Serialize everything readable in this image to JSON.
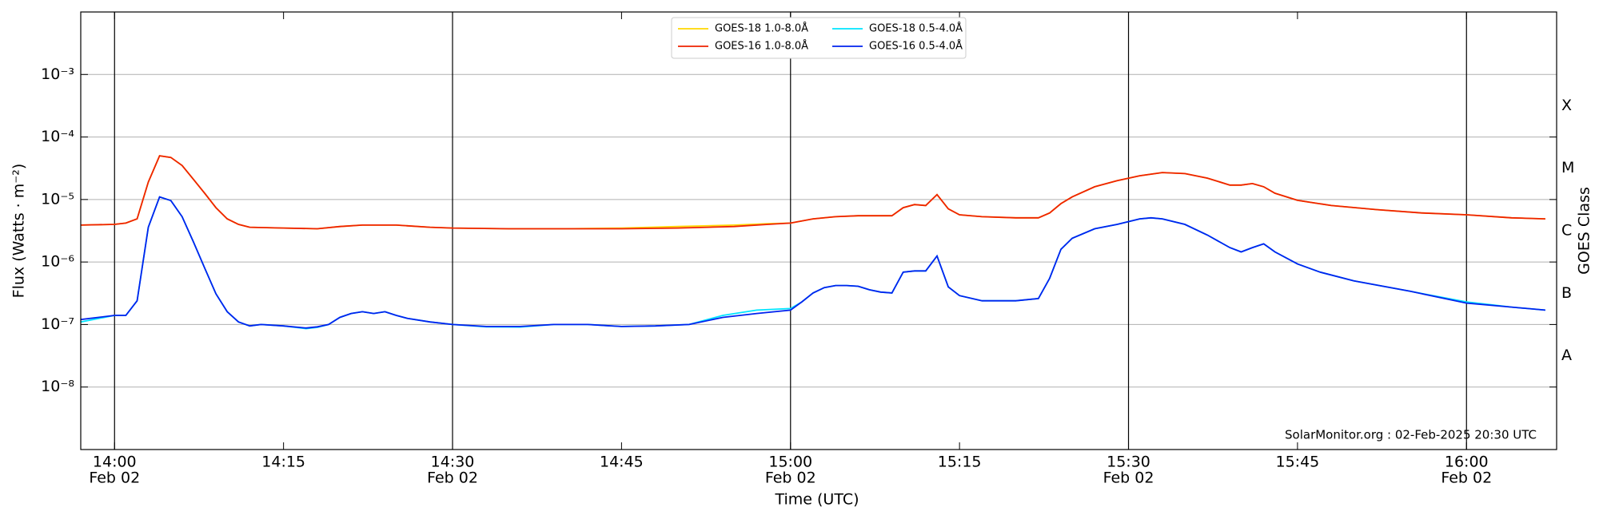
{
  "chart_data": {
    "type": "line",
    "x_label": "Time (UTC)",
    "y_label": "Flux (Watts · m⁻²)",
    "y2_label": "GOES Class",
    "annotation": "SolarMonitor.org : 02-Feb-2025 20:30 UTC",
    "log_scale": true,
    "grid": true,
    "legend": "upper center",
    "xlim": [
      "13:57",
      "16:08"
    ],
    "xticks": [
      "14:00",
      "14:15",
      "14:30",
      "14:45",
      "15:00",
      "15:15",
      "15:30",
      "15:45",
      "16:00"
    ],
    "xtick_dates": [
      "Feb 02",
      null,
      "Feb 02",
      null,
      "Feb 02",
      null,
      "Feb 02",
      null,
      "Feb 02"
    ],
    "vlines": [
      "14:00",
      "14:30",
      "15:00",
      "15:30",
      "16:00"
    ],
    "ylim": [
      1e-09,
      0.01
    ],
    "yticks": [
      {
        "value": 1e-08,
        "label": "10⁻⁸"
      },
      {
        "value": 1e-07,
        "label": "10⁻⁷"
      },
      {
        "value": 1e-06,
        "label": "10⁻⁶"
      },
      {
        "value": 1e-05,
        "label": "10⁻⁵"
      },
      {
        "value": 0.0001,
        "label": "10⁻⁴"
      },
      {
        "value": 0.001,
        "label": "10⁻³"
      }
    ],
    "y2ticks": [
      {
        "value": 1e-08,
        "label": "A"
      },
      {
        "value": 1e-07,
        "label": "B"
      },
      {
        "value": 1e-06,
        "label": "C"
      },
      {
        "value": 1e-05,
        "label": "M"
      },
      {
        "value": 0.0001,
        "label": "X"
      }
    ],
    "series": [
      {
        "name": "GOES-18 1.0-8.0Å",
        "color": "#ffd700",
        "x": [
          "13:57",
          "14:00",
          "14:01",
          "14:02",
          "14:03",
          "14:04",
          "14:05",
          "14:06",
          "14:07",
          "14:08",
          "14:09",
          "14:10",
          "14:11",
          "14:12",
          "14:15",
          "14:18",
          "14:20",
          "14:22",
          "14:25",
          "14:28",
          "14:30",
          "14:35",
          "14:40",
          "14:45",
          "14:50",
          "14:55",
          "14:58",
          "15:00",
          "15:02",
          "15:04",
          "15:06",
          "15:08",
          "15:09",
          "15:10",
          "15:11",
          "15:12",
          "15:13",
          "15:14",
          "15:15",
          "15:17",
          "15:20",
          "15:22",
          "15:23",
          "15:24",
          "15:25",
          "15:27",
          "15:29",
          "15:31",
          "15:33",
          "15:35",
          "15:37",
          "15:39",
          "15:40",
          "15:41",
          "15:42",
          "15:43",
          "15:45",
          "15:48",
          "15:52",
          "15:56",
          "16:00",
          "16:04",
          "16:07"
        ],
        "values": [
          3.9e-06,
          4e-06,
          4.2e-06,
          4.9e-06,
          1.9e-05,
          5e-05,
          4.7e-05,
          3.5e-05,
          2.1e-05,
          1.26e-05,
          7.4e-06,
          4.9e-06,
          4e-06,
          3.6e-06,
          3.5e-06,
          3.4e-06,
          3.7e-06,
          3.9e-06,
          3.9e-06,
          3.6e-06,
          3.5e-06,
          3.4e-06,
          3.4e-06,
          3.5e-06,
          3.7e-06,
          3.9e-06,
          4.1e-06,
          4.2e-06,
          4.9e-06,
          5.3e-06,
          5.5e-06,
          5.5e-06,
          5.5e-06,
          7.4e-06,
          8.3e-06,
          8e-06,
          1.2e-05,
          7.1e-06,
          5.7e-06,
          5.3e-06,
          5.1e-06,
          5.1e-06,
          6.1e-06,
          8.6e-06,
          1.1e-05,
          1.6e-05,
          2e-05,
          2.4e-05,
          2.7e-05,
          2.6e-05,
          2.2e-05,
          1.7e-05,
          1.7e-05,
          1.8e-05,
          1.6e-05,
          1.26e-05,
          9.7e-06,
          8e-06,
          6.9e-06,
          6.1e-06,
          5.7e-06,
          5.1e-06,
          4.9e-06
        ]
      },
      {
        "name": "GOES-16 1.0-8.0Å",
        "color": "#ee2200",
        "x": [
          "13:57",
          "14:00",
          "14:01",
          "14:02",
          "14:03",
          "14:04",
          "14:05",
          "14:06",
          "14:07",
          "14:08",
          "14:09",
          "14:10",
          "14:11",
          "14:12",
          "14:15",
          "14:18",
          "14:20",
          "14:22",
          "14:25",
          "14:28",
          "14:30",
          "14:35",
          "14:40",
          "14:45",
          "14:50",
          "14:55",
          "14:58",
          "15:00",
          "15:02",
          "15:04",
          "15:06",
          "15:08",
          "15:09",
          "15:10",
          "15:11",
          "15:12",
          "15:13",
          "15:14",
          "15:15",
          "15:17",
          "15:20",
          "15:22",
          "15:23",
          "15:24",
          "15:25",
          "15:27",
          "15:29",
          "15:31",
          "15:33",
          "15:35",
          "15:37",
          "15:39",
          "15:40",
          "15:41",
          "15:42",
          "15:43",
          "15:45",
          "15:48",
          "15:52",
          "15:56",
          "16:00",
          "16:04",
          "16:07"
        ],
        "values": [
          3.9e-06,
          4e-06,
          4.2e-06,
          4.9e-06,
          1.9e-05,
          5e-05,
          4.7e-05,
          3.5e-05,
          2.1e-05,
          1.26e-05,
          7.4e-06,
          4.9e-06,
          4e-06,
          3.6e-06,
          3.5e-06,
          3.4e-06,
          3.7e-06,
          3.9e-06,
          3.9e-06,
          3.6e-06,
          3.5e-06,
          3.4e-06,
          3.4e-06,
          3.4e-06,
          3.5e-06,
          3.7e-06,
          4e-06,
          4.2e-06,
          4.9e-06,
          5.3e-06,
          5.5e-06,
          5.5e-06,
          5.5e-06,
          7.4e-06,
          8.3e-06,
          8e-06,
          1.2e-05,
          7.1e-06,
          5.7e-06,
          5.3e-06,
          5.1e-06,
          5.1e-06,
          6.1e-06,
          8.6e-06,
          1.1e-05,
          1.6e-05,
          2e-05,
          2.4e-05,
          2.7e-05,
          2.6e-05,
          2.2e-05,
          1.7e-05,
          1.7e-05,
          1.8e-05,
          1.6e-05,
          1.26e-05,
          9.7e-06,
          8e-06,
          6.9e-06,
          6.1e-06,
          5.7e-06,
          5.1e-06,
          4.9e-06
        ]
      },
      {
        "name": "GOES-18 0.5-4.0Å",
        "color": "#00e5ff",
        "x": [
          "13:57",
          "14:00",
          "14:01",
          "14:02",
          "14:03",
          "14:04",
          "14:05",
          "14:06",
          "14:07",
          "14:08",
          "14:09",
          "14:10",
          "14:11",
          "14:12",
          "14:13",
          "14:15",
          "14:17",
          "14:18",
          "14:19",
          "14:20",
          "14:21",
          "14:22",
          "14:23",
          "14:24",
          "14:25",
          "14:26",
          "14:28",
          "14:30",
          "14:33",
          "14:36",
          "14:39",
          "14:42",
          "14:45",
          "14:48",
          "14:51",
          "14:54",
          "14:57",
          "15:00",
          "15:01",
          "15:02",
          "15:03",
          "15:04",
          "15:05",
          "15:06",
          "15:07",
          "15:08",
          "15:09",
          "15:10",
          "15:11",
          "15:12",
          "15:13",
          "15:14",
          "15:15",
          "15:17",
          "15:20",
          "15:22",
          "15:23",
          "15:24",
          "15:25",
          "15:27",
          "15:29",
          "15:31",
          "15:32",
          "15:33",
          "15:35",
          "15:37",
          "15:39",
          "15:40",
          "15:41",
          "15:42",
          "15:43",
          "15:45",
          "15:47",
          "15:50",
          "15:55",
          "16:00",
          "16:04",
          "16:07"
        ],
        "values": [
          1.1e-07,
          1.4e-07,
          1.4e-07,
          2.4e-07,
          3.6e-06,
          1.1e-05,
          9.6e-06,
          5.3e-06,
          2.1e-06,
          8e-07,
          3.1e-07,
          1.6e-07,
          1.1e-07,
          9.5e-08,
          1e-07,
          9.5e-08,
          8.6e-08,
          9e-08,
          1e-07,
          1.3e-07,
          1.5e-07,
          1.6e-07,
          1.5e-07,
          1.6e-07,
          1.4e-07,
          1.25e-07,
          1.1e-07,
          1e-07,
          9.2e-08,
          9.1e-08,
          1e-07,
          1e-07,
          9.3e-08,
          9.5e-08,
          1e-07,
          1.4e-07,
          1.7e-07,
          1.8e-07,
          2.3e-07,
          3.2e-07,
          3.9e-07,
          4.2e-07,
          4.2e-07,
          4.1e-07,
          3.6e-07,
          3.3e-07,
          3.2e-07,
          6.9e-07,
          7.2e-07,
          7.2e-07,
          1.25e-06,
          4e-07,
          2.9e-07,
          2.4e-07,
          2.4e-07,
          2.6e-07,
          5.5e-07,
          1.6e-06,
          2.4e-06,
          3.4e-06,
          4e-06,
          4.9e-06,
          5.1e-06,
          4.9e-06,
          4e-06,
          2.7e-06,
          1.7e-06,
          1.45e-06,
          1.7e-06,
          1.95e-06,
          1.45e-06,
          9.3e-07,
          6.9e-07,
          5e-07,
          3.4e-07,
          2.3e-07,
          1.9e-07,
          1.7e-07
        ]
      },
      {
        "name": "GOES-16 0.5-4.0Å",
        "color": "#0022ee",
        "x": [
          "13:57",
          "14:00",
          "14:01",
          "14:02",
          "14:03",
          "14:04",
          "14:05",
          "14:06",
          "14:07",
          "14:08",
          "14:09",
          "14:10",
          "14:11",
          "14:12",
          "14:13",
          "14:15",
          "14:17",
          "14:18",
          "14:19",
          "14:20",
          "14:21",
          "14:22",
          "14:23",
          "14:24",
          "14:25",
          "14:26",
          "14:28",
          "14:30",
          "14:33",
          "14:36",
          "14:39",
          "14:42",
          "14:45",
          "14:48",
          "14:51",
          "14:54",
          "14:57",
          "15:00",
          "15:01",
          "15:02",
          "15:03",
          "15:04",
          "15:05",
          "15:06",
          "15:07",
          "15:08",
          "15:09",
          "15:10",
          "15:11",
          "15:12",
          "15:13",
          "15:14",
          "15:15",
          "15:17",
          "15:20",
          "15:22",
          "15:23",
          "15:24",
          "15:25",
          "15:27",
          "15:29",
          "15:31",
          "15:32",
          "15:33",
          "15:35",
          "15:37",
          "15:39",
          "15:40",
          "15:41",
          "15:42",
          "15:43",
          "15:45",
          "15:47",
          "15:50",
          "15:55",
          "16:00",
          "16:04",
          "16:07"
        ],
        "values": [
          1.2e-07,
          1.4e-07,
          1.4e-07,
          2.4e-07,
          3.6e-06,
          1.1e-05,
          9.6e-06,
          5.3e-06,
          2.1e-06,
          8e-07,
          3.1e-07,
          1.6e-07,
          1.1e-07,
          9.5e-08,
          1e-07,
          9.5e-08,
          8.8e-08,
          9.2e-08,
          1e-07,
          1.3e-07,
          1.5e-07,
          1.6e-07,
          1.5e-07,
          1.6e-07,
          1.4e-07,
          1.25e-07,
          1.1e-07,
          1e-07,
          9.3e-08,
          9.3e-08,
          1e-07,
          1e-07,
          9.3e-08,
          9.5e-08,
          1e-07,
          1.3e-07,
          1.5e-07,
          1.7e-07,
          2.3e-07,
          3.2e-07,
          3.9e-07,
          4.2e-07,
          4.2e-07,
          4.1e-07,
          3.6e-07,
          3.3e-07,
          3.2e-07,
          6.9e-07,
          7.2e-07,
          7.2e-07,
          1.25e-06,
          4e-07,
          2.9e-07,
          2.4e-07,
          2.4e-07,
          2.6e-07,
          5.5e-07,
          1.6e-06,
          2.4e-06,
          3.4e-06,
          4e-06,
          4.9e-06,
          5.1e-06,
          4.9e-06,
          4e-06,
          2.7e-06,
          1.7e-06,
          1.45e-06,
          1.7e-06,
          1.95e-06,
          1.45e-06,
          9.3e-07,
          6.9e-07,
          5e-07,
          3.4e-07,
          2.2e-07,
          1.9e-07,
          1.7e-07
        ]
      }
    ]
  }
}
